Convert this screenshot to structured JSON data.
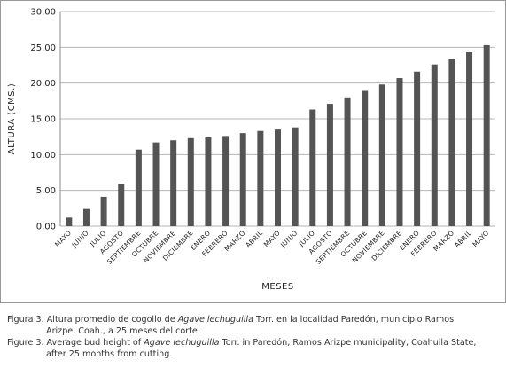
{
  "chart_data": {
    "type": "bar",
    "title": "",
    "xlabel": "MESES",
    "ylabel": "ALTURA (CMS.)",
    "ylim": [
      0,
      30
    ],
    "yticks": [
      "0.00",
      "5.00",
      "10.00",
      "15.00",
      "20.00",
      "25.00",
      "30.00"
    ],
    "grid": true,
    "bar_color": "#545454",
    "categories": [
      "MAYO",
      "JUNIO",
      "JULIO",
      "AGOSTO",
      "SEPTIEMBRE",
      "OCTUBRE",
      "NOVIEMBRE",
      "DICIEMBRE",
      "ENERO",
      "FEBRERO",
      "MARZO",
      "ABRIL",
      "MAYO",
      "JUNIO",
      "JULIO",
      "AGOSTO",
      "SEPTIEMBRE",
      "OCTUBRE",
      "NOVIEMBRE",
      "DICIEMBRE",
      "ENERO",
      "FEBRERO",
      "MARZO",
      "ABRIL",
      "MAYO"
    ],
    "values": [
      1.2,
      2.4,
      4.1,
      5.9,
      10.7,
      11.7,
      12.0,
      12.3,
      12.4,
      12.6,
      13.0,
      13.3,
      13.5,
      13.8,
      16.3,
      17.1,
      18.0,
      18.9,
      19.8,
      20.7,
      21.6,
      22.6,
      23.4,
      24.3,
      25.3
    ]
  },
  "captions": {
    "es_prefix": "Figura 3. Altura promedio de cogollo de ",
    "es_species": "Agave lechuguilla",
    "es_suffix": " Torr. en la localidad Paredón, municipio Ramos",
    "es_line2": "Arizpe, Coah., a 25 meses del corte.",
    "en_prefix": "Figure 3. Average bud height of ",
    "en_species": "Agave lechuguilla",
    "en_suffix": " Torr. in Paredón, Ramos Arizpe municipality, Coahuila State,",
    "en_line2": "after 25 months from cutting."
  }
}
